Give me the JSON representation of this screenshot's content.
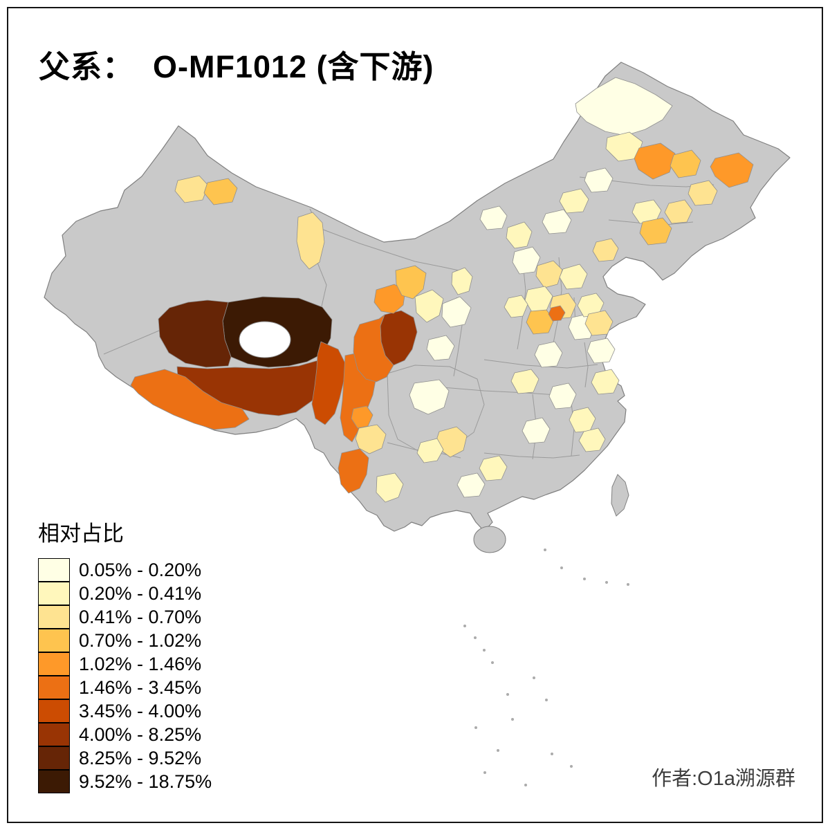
{
  "title": "父系：  O-MF1012 (含下游)",
  "legend": {
    "title": "相对占比",
    "items": [
      {
        "label": "0.05% - 0.20%",
        "color": "#FFFFE5"
      },
      {
        "label": "0.20% - 0.41%",
        "color": "#FFF7BC"
      },
      {
        "label": "0.41% - 0.70%",
        "color": "#FEE391"
      },
      {
        "label": "0.70% - 1.02%",
        "color": "#FEC44F"
      },
      {
        "label": "1.02% - 1.46%",
        "color": "#FE9929"
      },
      {
        "label": "1.46% - 3.45%",
        "color": "#EC7014"
      },
      {
        "label": "3.45% - 4.00%",
        "color": "#CC4C02"
      },
      {
        "label": "4.00% - 8.25%",
        "color": "#993404"
      },
      {
        "label": "8.25% - 9.52%",
        "color": "#662506"
      },
      {
        "label": "9.52% - 18.75%",
        "color": "#3C1A04"
      }
    ]
  },
  "attribution": "作者:O1a溯源群",
  "map": {
    "no_data_color": "#C9C9C9",
    "country_border_color": "#7F7F7F",
    "province_border_color": "#9A9A9A",
    "region_border_color": "#8F8F8F",
    "lake_color": "#FFFFFF",
    "background_color": "#FFFFFF"
  }
}
